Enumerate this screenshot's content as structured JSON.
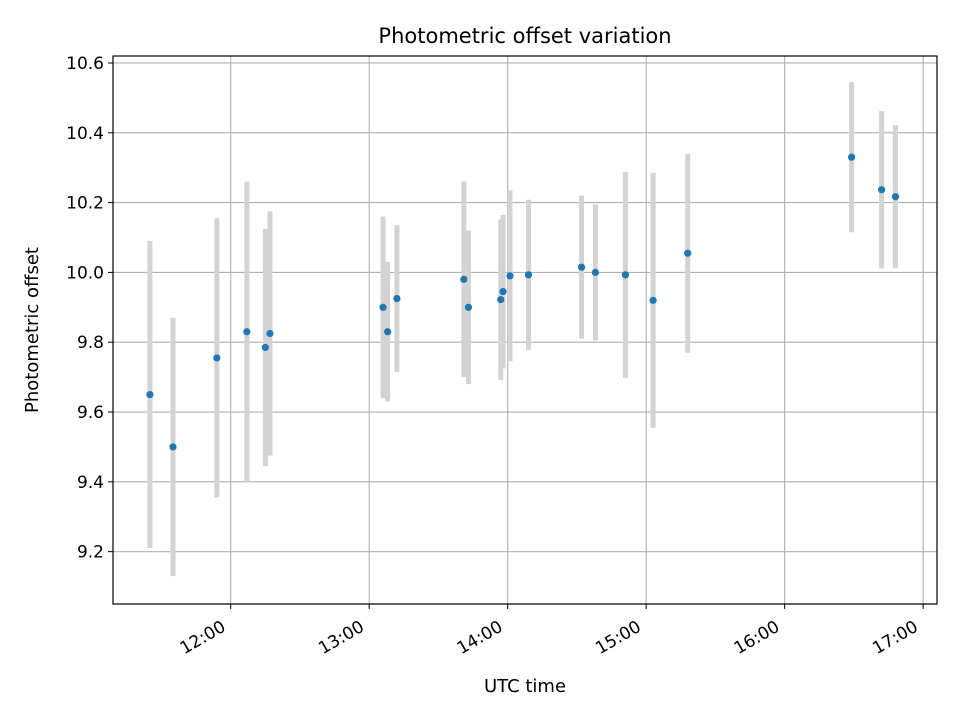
{
  "chart_data": {
    "type": "scatter",
    "title": "Photometric offset variation",
    "xlabel": "UTC time",
    "ylabel": "Photometric offset",
    "xlim": [
      "11:09",
      "17:06"
    ],
    "ylim": [
      9.05,
      10.62
    ],
    "grid": true,
    "x_ticks": [
      "12:00",
      "13:00",
      "14:00",
      "15:00",
      "16:00",
      "17:00"
    ],
    "y_ticks": [
      9.2,
      9.4,
      9.6,
      9.8,
      10.0,
      10.2,
      10.4,
      10.6
    ],
    "y_tick_labels": [
      "9.2",
      "9.4",
      "9.6",
      "9.8",
      "10.0",
      "10.2",
      "10.4",
      "10.6"
    ],
    "series": [
      {
        "marker_color": "#1f77b4",
        "errorbar_color": "#d3d3d3",
        "points": [
          {
            "x": "11:25",
            "y": 9.65,
            "err": 0.44
          },
          {
            "x": "11:35",
            "y": 9.5,
            "err": 0.37
          },
          {
            "x": "11:54",
            "y": 9.755,
            "err": 0.4
          },
          {
            "x": "12:07",
            "y": 9.83,
            "err": 0.43
          },
          {
            "x": "12:15",
            "y": 9.785,
            "err": 0.34
          },
          {
            "x": "12:17",
            "y": 9.825,
            "err": 0.35
          },
          {
            "x": "13:06",
            "y": 9.9,
            "err": 0.26
          },
          {
            "x": "13:08",
            "y": 9.83,
            "err": 0.2
          },
          {
            "x": "13:12",
            "y": 9.925,
            "err": 0.21
          },
          {
            "x": "13:41",
            "y": 9.98,
            "err": 0.28
          },
          {
            "x": "13:43",
            "y": 9.9,
            "err": 0.22
          },
          {
            "x": "13:57",
            "y": 9.922,
            "err": 0.23
          },
          {
            "x": "13:58",
            "y": 9.945,
            "err": 0.22
          },
          {
            "x": "14:01",
            "y": 9.99,
            "err": 0.245
          },
          {
            "x": "14:09",
            "y": 9.993,
            "err": 0.215
          },
          {
            "x": "14:32",
            "y": 10.015,
            "err": 0.205
          },
          {
            "x": "14:38",
            "y": 10.0,
            "err": 0.195
          },
          {
            "x": "14:51",
            "y": 9.993,
            "err": 0.295
          },
          {
            "x": "15:03",
            "y": 9.92,
            "err": 0.365
          },
          {
            "x": "15:18",
            "y": 10.055,
            "err": 0.285
          },
          {
            "x": "16:29",
            "y": 10.33,
            "err": 0.215
          },
          {
            "x": "16:42",
            "y": 10.237,
            "err": 0.225
          },
          {
            "x": "16:48",
            "y": 10.217,
            "err": 0.205
          }
        ]
      }
    ]
  }
}
